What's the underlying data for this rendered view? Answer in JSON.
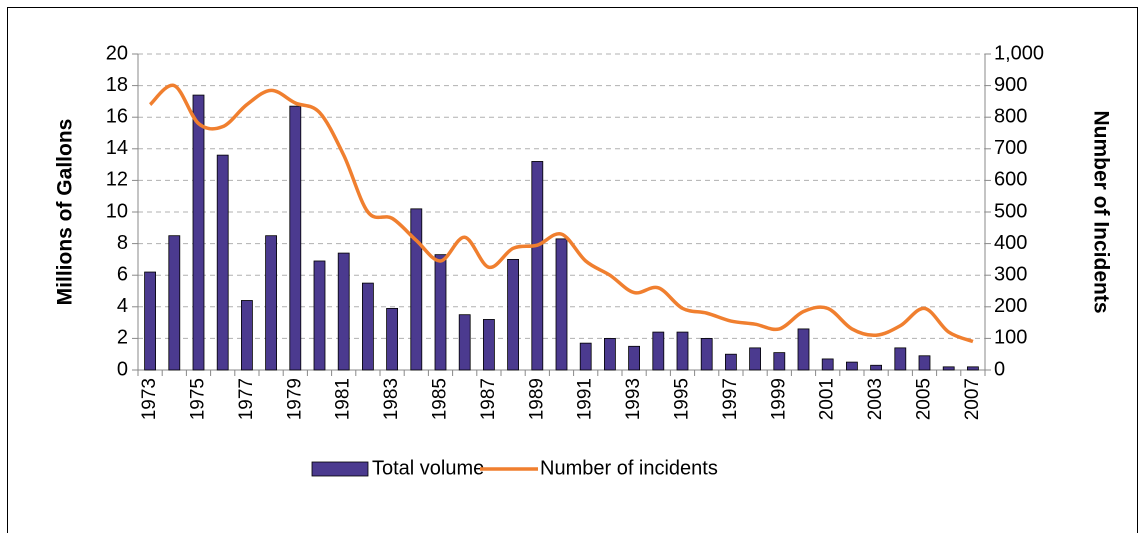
{
  "chart_data": {
    "type": "bar",
    "categories": [
      "1973",
      null,
      "1975",
      null,
      "1977",
      null,
      "1979",
      null,
      "1981",
      null,
      "1983",
      null,
      "1985",
      null,
      "1987",
      null,
      "1989",
      null,
      "1991",
      null,
      "1993",
      null,
      "1995",
      null,
      "1997",
      null,
      "1999",
      null,
      "2001",
      null,
      "2003",
      null,
      "2005",
      null,
      "2007"
    ],
    "y_label": "Millions of Gallons",
    "y2_label": "Number of Incidents",
    "ylim": [
      0,
      20
    ],
    "yticks": [
      0,
      2,
      4,
      6,
      8,
      10,
      12,
      14,
      16,
      18,
      20
    ],
    "y2lim": [
      0,
      1000
    ],
    "y2ticks": [
      0,
      100,
      200,
      300,
      400,
      500,
      600,
      700,
      800,
      900,
      {
        "value": 1000,
        "label": "1,000"
      }
    ],
    "grid": true,
    "legend": "bottom",
    "series": [
      {
        "name": "Total volume",
        "type": "bar",
        "color": "#4b3a8f",
        "values": [
          6.2,
          8.5,
          17.4,
          13.6,
          4.4,
          8.5,
          16.7,
          6.9,
          7.4,
          5.5,
          3.9,
          10.2,
          7.3,
          3.5,
          3.2,
          7.0,
          13.2,
          8.3,
          1.7,
          2.0,
          1.5,
          2.4,
          2.4,
          2.0,
          1.0,
          1.4,
          1.1,
          2.6,
          0.7,
          0.5,
          0.3,
          1.4,
          0.9,
          0.2,
          0.2
        ]
      },
      {
        "name": "Number of incidents",
        "type": "line",
        "axis": "y2",
        "color": "#f07f2f",
        "values": [
          840,
          900,
          780,
          770,
          840,
          885,
          845,
          815,
          680,
          500,
          480,
          410,
          345,
          420,
          325,
          385,
          395,
          430,
          345,
          300,
          245,
          260,
          195,
          180,
          155,
          145,
          130,
          185,
          195,
          130,
          110,
          140,
          195,
          120,
          90
        ]
      }
    ]
  }
}
